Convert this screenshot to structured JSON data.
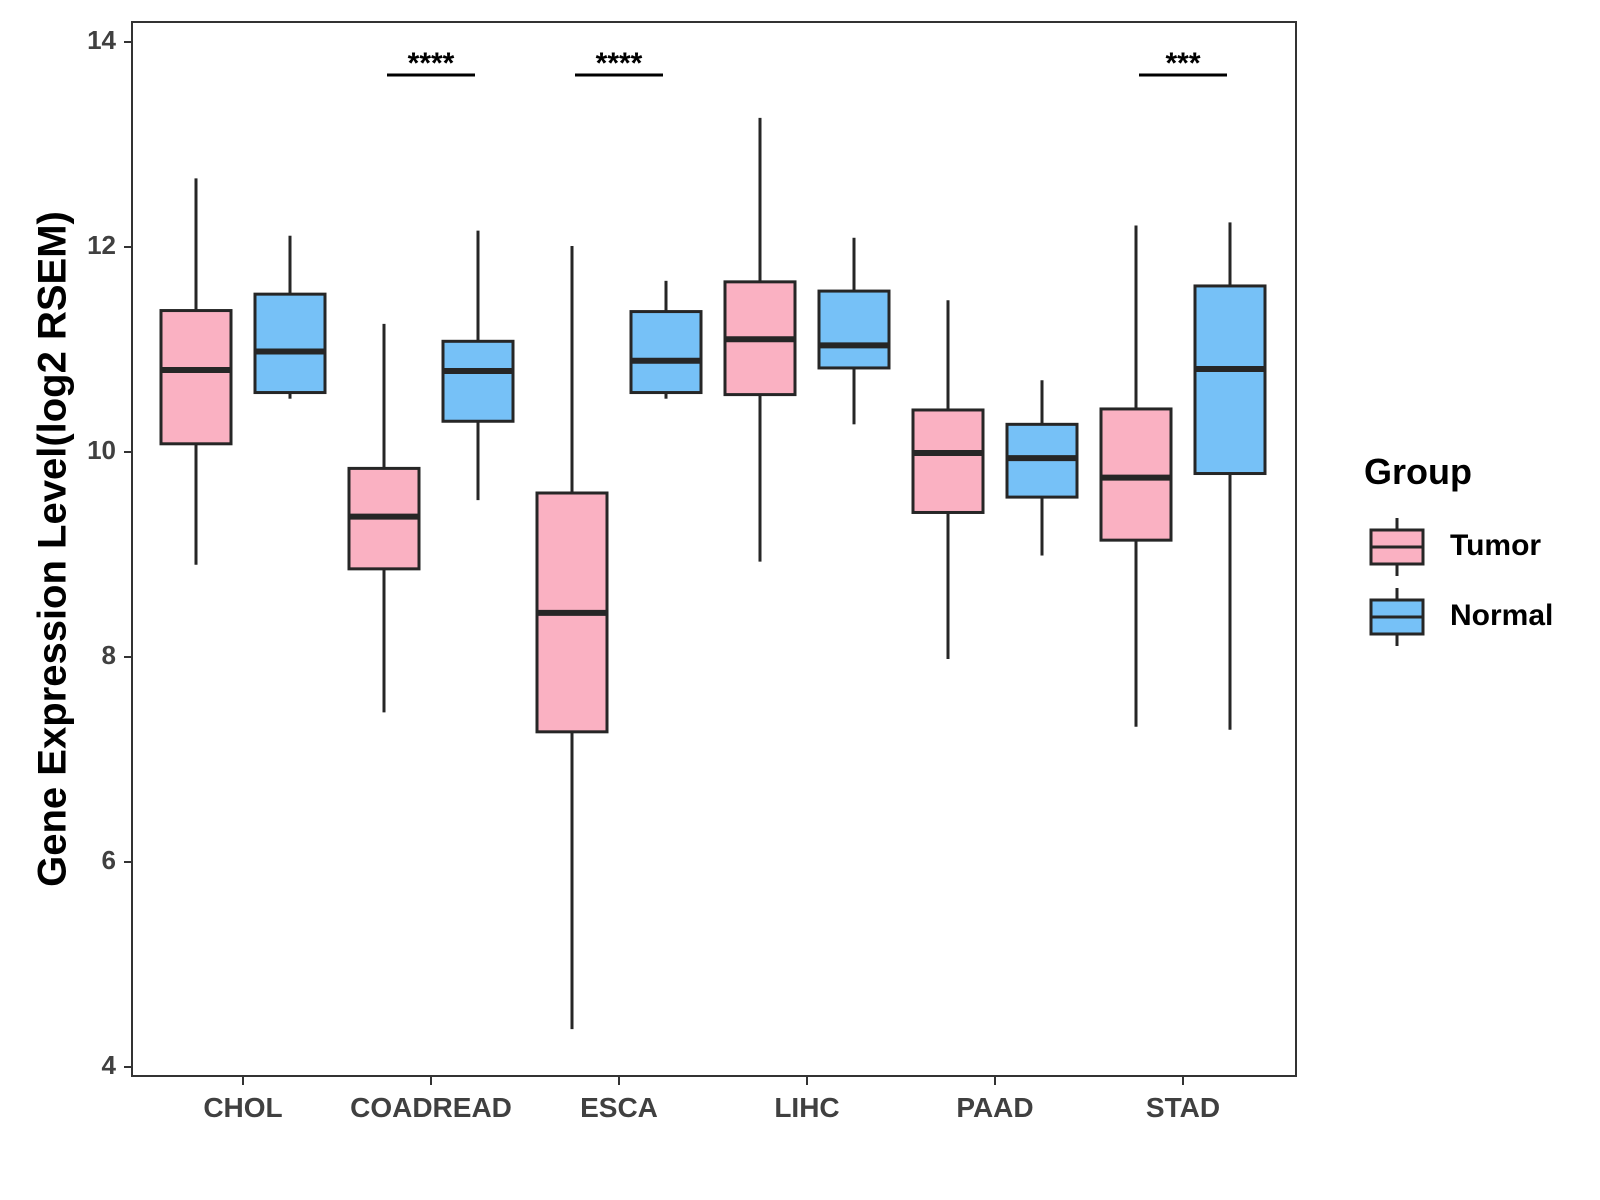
{
  "chart_data": {
    "type": "boxplot",
    "ylabel": "Gene Expression Level(log2 RSEM)",
    "xlabel": "",
    "ylim": [
      4,
      14
    ],
    "yticks": [
      4,
      6,
      8,
      10,
      12,
      14
    ],
    "categories": [
      "CHOL",
      "COADREAD",
      "ESCA",
      "LIHC",
      "PAAD",
      "STAD"
    ],
    "legend": {
      "title": "Group",
      "position": "right",
      "entries": [
        {
          "name": "Tumor",
          "color": "#FAB1C2"
        },
        {
          "name": "Normal",
          "color": "#76C1F7"
        }
      ]
    },
    "series": [
      {
        "name": "Tumor",
        "color": "#FAB1C2",
        "boxes": [
          {
            "category": "CHOL",
            "min": 8.9,
            "q1": 10.08,
            "median": 10.8,
            "q3": 11.38,
            "max": 12.67
          },
          {
            "category": "COADREAD",
            "min": 7.46,
            "q1": 8.86,
            "median": 9.37,
            "q3": 9.84,
            "max": 11.25
          },
          {
            "category": "ESCA",
            "min": 4.37,
            "q1": 7.27,
            "median": 8.43,
            "q3": 9.6,
            "max": 12.01
          },
          {
            "category": "LIHC",
            "min": 8.93,
            "q1": 10.56,
            "median": 11.1,
            "q3": 11.66,
            "max": 13.26
          },
          {
            "category": "PAAD",
            "min": 7.98,
            "q1": 9.41,
            "median": 9.99,
            "q3": 10.41,
            "max": 11.48
          },
          {
            "category": "STAD",
            "min": 7.32,
            "q1": 9.14,
            "median": 9.75,
            "q3": 10.42,
            "max": 12.21
          }
        ]
      },
      {
        "name": "Normal",
        "color": "#76C1F7",
        "boxes": [
          {
            "category": "CHOL",
            "min": 10.52,
            "q1": 10.58,
            "median": 10.98,
            "q3": 11.54,
            "max": 12.11
          },
          {
            "category": "COADREAD",
            "min": 9.53,
            "q1": 10.3,
            "median": 10.79,
            "q3": 11.08,
            "max": 12.16
          },
          {
            "category": "ESCA",
            "min": 10.52,
            "q1": 10.58,
            "median": 10.89,
            "q3": 11.37,
            "max": 11.67
          },
          {
            "category": "LIHC",
            "min": 10.27,
            "q1": 10.82,
            "median": 11.04,
            "q3": 11.57,
            "max": 12.09
          },
          {
            "category": "PAAD",
            "min": 8.99,
            "q1": 9.56,
            "median": 9.94,
            "q3": 10.27,
            "max": 10.7
          },
          {
            "category": "STAD",
            "min": 7.29,
            "q1": 9.79,
            "median": 10.81,
            "q3": 11.62,
            "max": 12.24
          }
        ]
      }
    ],
    "significance": [
      {
        "category": "COADREAD",
        "label": "****"
      },
      {
        "category": "ESCA",
        "label": "****"
      },
      {
        "category": "STAD",
        "label": "***"
      }
    ]
  }
}
